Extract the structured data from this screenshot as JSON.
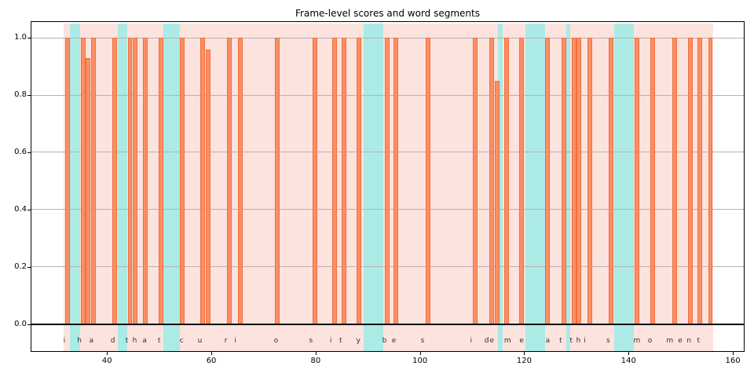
{
  "title": "Frame-level scores and word segments",
  "chart_data": {
    "type": "bar",
    "title": "Frame-level scores and word segments",
    "xlabel": "",
    "ylabel": "",
    "xlim": [
      25.5,
      162.4
    ],
    "ylim": [
      -0.099,
      1.055
    ],
    "xticks": [
      40,
      60,
      80,
      100,
      120,
      140,
      160
    ],
    "ytick_labels": [
      "0.0",
      "0.2",
      "0.4",
      "0.6",
      "0.8",
      "1.0"
    ],
    "yticks": [
      0.0,
      0.2,
      0.4,
      0.6,
      0.8,
      1.0
    ],
    "grid": "horizontal-only",
    "legend": "none",
    "zero_line": 0.0,
    "bar_width_units": 0.9,
    "bars": [
      {
        "x": 32.5,
        "score": 1.0
      },
      {
        "x": 35.4,
        "score": 1.0
      },
      {
        "x": 36.4,
        "score": 0.93
      },
      {
        "x": 37.4,
        "score": 1.0
      },
      {
        "x": 41.4,
        "score": 1.0
      },
      {
        "x": 44.4,
        "score": 1.0
      },
      {
        "x": 45.4,
        "score": 1.0
      },
      {
        "x": 47.4,
        "score": 1.0
      },
      {
        "x": 50.4,
        "score": 1.0
      },
      {
        "x": 54.4,
        "score": 1.0
      },
      {
        "x": 58.4,
        "score": 1.0
      },
      {
        "x": 59.4,
        "score": 0.96
      },
      {
        "x": 63.4,
        "score": 1.0
      },
      {
        "x": 65.5,
        "score": 1.0
      },
      {
        "x": 72.6,
        "score": 1.0
      },
      {
        "x": 79.8,
        "score": 1.0
      },
      {
        "x": 83.7,
        "score": 1.0
      },
      {
        "x": 85.5,
        "score": 1.0
      },
      {
        "x": 88.3,
        "score": 1.0
      },
      {
        "x": 93.7,
        "score": 1.0
      },
      {
        "x": 95.4,
        "score": 1.0
      },
      {
        "x": 101.6,
        "score": 1.0
      },
      {
        "x": 110.6,
        "score": 1.0
      },
      {
        "x": 113.7,
        "score": 1.0
      },
      {
        "x": 114.8,
        "score": 0.85
      },
      {
        "x": 116.6,
        "score": 1.0
      },
      {
        "x": 119.5,
        "score": 1.0
      },
      {
        "x": 124.5,
        "score": 1.0
      },
      {
        "x": 127.6,
        "score": 1.0
      },
      {
        "x": 129.6,
        "score": 1.0
      },
      {
        "x": 130.5,
        "score": 1.0
      },
      {
        "x": 132.6,
        "score": 1.0
      },
      {
        "x": 136.7,
        "score": 1.0
      },
      {
        "x": 141.6,
        "score": 1.0
      },
      {
        "x": 144.6,
        "score": 1.0
      },
      {
        "x": 148.9,
        "score": 1.0
      },
      {
        "x": 151.8,
        "score": 1.0
      },
      {
        "x": 153.7,
        "score": 1.0
      },
      {
        "x": 155.7,
        "score": 1.0
      }
    ],
    "word_region": {
      "start": 31.6,
      "end": 156.2
    },
    "pause_spans": [
      {
        "start": 32.9,
        "end": 34.9
      },
      {
        "start": 42.0,
        "end": 43.9
      },
      {
        "start": 50.8,
        "end": 53.9
      },
      {
        "start": 89.2,
        "end": 93.0
      },
      {
        "start": 115.0,
        "end": 115.9
      },
      {
        "start": 120.2,
        "end": 124.0
      },
      {
        "start": 128.1,
        "end": 128.8
      },
      {
        "start": 137.2,
        "end": 141.0
      }
    ],
    "letters": [
      {
        "ch": "i",
        "x": 31.8
      },
      {
        "ch": "h",
        "x": 34.7
      },
      {
        "ch": "a",
        "x": 37.0
      },
      {
        "ch": "d",
        "x": 41.1
      },
      {
        "ch": "t",
        "x": 43.8
      },
      {
        "ch": "h",
        "x": 45.3
      },
      {
        "ch": "a",
        "x": 47.2
      },
      {
        "ch": "t",
        "x": 50.0
      },
      {
        "ch": "c",
        "x": 54.3
      },
      {
        "ch": "u",
        "x": 57.8
      },
      {
        "ch": "r",
        "x": 62.8
      },
      {
        "ch": "i",
        "x": 64.6
      },
      {
        "ch": "o",
        "x": 72.4
      },
      {
        "ch": "s",
        "x": 79.1
      },
      {
        "ch": "i",
        "x": 82.9
      },
      {
        "ch": "t",
        "x": 84.8
      },
      {
        "ch": "y",
        "x": 88.2
      },
      {
        "ch": "b",
        "x": 93.2
      },
      {
        "ch": "e",
        "x": 95.0
      },
      {
        "ch": "s",
        "x": 100.5
      },
      {
        "ch": "i",
        "x": 109.8
      },
      {
        "ch": "d",
        "x": 112.8
      },
      {
        "ch": "e",
        "x": 113.8
      },
      {
        "ch": "m",
        "x": 116.8
      },
      {
        "ch": "e",
        "x": 119.5
      },
      {
        "ch": "a",
        "x": 124.5
      },
      {
        "ch": "t",
        "x": 127.0
      },
      {
        "ch": "t",
        "x": 129.0
      },
      {
        "ch": "h",
        "x": 130.4
      },
      {
        "ch": "i",
        "x": 131.6
      },
      {
        "ch": "s",
        "x": 136.1
      },
      {
        "ch": "m",
        "x": 141.6
      },
      {
        "ch": "o",
        "x": 144.1
      },
      {
        "ch": "m",
        "x": 147.9
      },
      {
        "ch": "e",
        "x": 149.9
      },
      {
        "ch": "n",
        "x": 151.6
      },
      {
        "ch": "t",
        "x": 153.4
      }
    ],
    "colors": {
      "bar_fill": "#FB8E64",
      "bar_edge": "#F0703E",
      "word_span": "#FDE3DE",
      "pause_span": "#ACEAE5",
      "grid": "#B4B4B4",
      "axis": "#000000",
      "letter_text": "#303030"
    }
  }
}
